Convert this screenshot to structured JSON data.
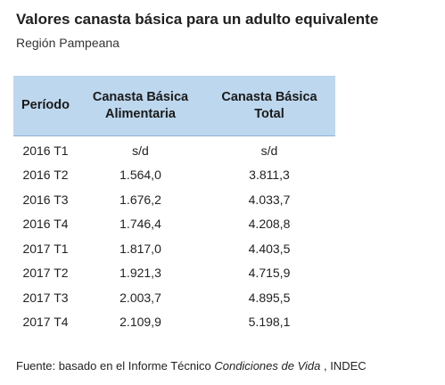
{
  "title": "Valores canasta básica para un adulto equivalente",
  "subtitle": "Región Pampeana",
  "table": {
    "headers": {
      "periodo": "Período",
      "alimentaria_line1": "Canasta Básica",
      "alimentaria_line2": "Alimentaria",
      "total_line1": "Canasta Básica",
      "total_line2": "Total"
    },
    "rows": [
      {
        "periodo": "2016 T1",
        "alimentaria": "s/d",
        "total": "s/d"
      },
      {
        "periodo": "2016 T2",
        "alimentaria": "1.564,0",
        "total": "3.811,3"
      },
      {
        "periodo": "2016 T3",
        "alimentaria": "1.676,2",
        "total": "4.033,7"
      },
      {
        "periodo": "2016 T4",
        "alimentaria": "1.746,4",
        "total": "4.208,8"
      },
      {
        "periodo": "2017 T1",
        "alimentaria": "1.817,0",
        "total": "4.403,5"
      },
      {
        "periodo": "2017 T2",
        "alimentaria": "1.921,3",
        "total": "4.715,9"
      },
      {
        "periodo": "2017 T3",
        "alimentaria": "2.003,7",
        "total": "4.895,5"
      },
      {
        "periodo": "2017 T4",
        "alimentaria": "2.109,9",
        "total": "5.198,1"
      }
    ]
  },
  "footer": {
    "prefix": "Fuente: basado en el Informe Técnico ",
    "italic": "Condiciones de Vida",
    "suffix": " , INDEC"
  },
  "colors": {
    "header_background": "#bdd7ee",
    "text": "#222222"
  }
}
